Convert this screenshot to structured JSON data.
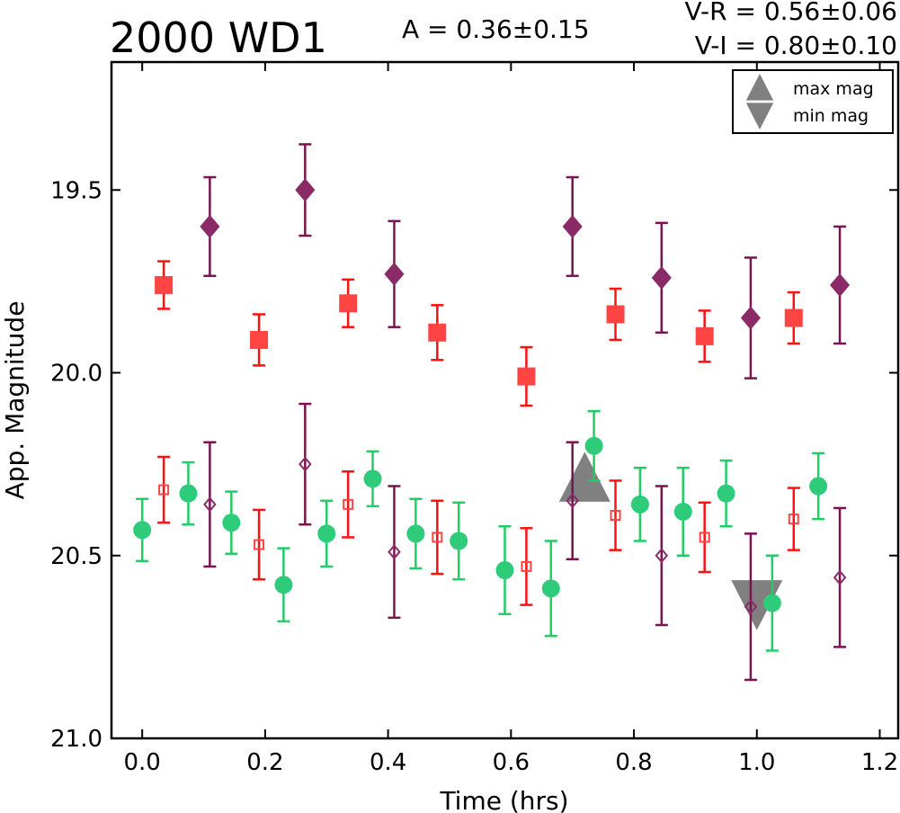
{
  "chart_data": {
    "type": "scatter",
    "title": "2000 WD1",
    "annotations": {
      "amplitude": "A  = 0.36±0.15",
      "v_r": "V-R = 0.56±0.06",
      "v_i": "V-I  = 0.80±0.10"
    },
    "xlabel": "Time (hrs)",
    "ylabel": "App. Magnitude",
    "xlim": [
      -0.05,
      1.23
    ],
    "ylim": [
      21.0,
      19.15
    ],
    "y_inverted": true,
    "x_ticks": [
      0.0,
      0.2,
      0.4,
      0.6,
      0.8,
      1.0,
      1.2
    ],
    "x_tick_labels": [
      "0.0",
      "0.2",
      "0.4",
      "0.6",
      "0.8",
      "1.0",
      "1.2"
    ],
    "y_ticks": [
      19.5,
      20.0,
      20.5,
      21.0
    ],
    "y_tick_labels": [
      "19.5",
      "20.0",
      "20.5",
      "21.0"
    ],
    "grid": false,
    "legend": {
      "placement": "top-right",
      "entries": [
        {
          "label": "max mag",
          "marker": "triangle-up",
          "color": "#808080"
        },
        {
          "label": "min mag",
          "marker": "triangle-down",
          "color": "#808080"
        }
      ]
    },
    "series": [
      {
        "marker": "square",
        "filled": true,
        "color": "#ff4444",
        "err_color": "#ff1111",
        "points": [
          {
            "x": 0.035,
            "y": 19.76,
            "err": 0.065
          },
          {
            "x": 0.19,
            "y": 19.91,
            "err": 0.07
          },
          {
            "x": 0.335,
            "y": 19.81,
            "err": 0.065
          },
          {
            "x": 0.48,
            "y": 19.89,
            "err": 0.075
          },
          {
            "x": 0.625,
            "y": 20.01,
            "err": 0.08
          },
          {
            "x": 0.77,
            "y": 19.84,
            "err": 0.07
          },
          {
            "x": 0.915,
            "y": 19.9,
            "err": 0.07
          },
          {
            "x": 1.06,
            "y": 19.85,
            "err": 0.07
          }
        ]
      },
      {
        "marker": "diamond",
        "filled": true,
        "color": "#8a2a66",
        "err_color": "#7a1450",
        "points": [
          {
            "x": 0.11,
            "y": 19.6,
            "err": 0.135
          },
          {
            "x": 0.265,
            "y": 19.5,
            "err": 0.125
          },
          {
            "x": 0.41,
            "y": 19.73,
            "err": 0.145
          },
          {
            "x": 0.7,
            "y": 19.6,
            "err": 0.135
          },
          {
            "x": 0.845,
            "y": 19.74,
            "err": 0.15
          },
          {
            "x": 0.99,
            "y": 19.85,
            "err": 0.165
          },
          {
            "x": 1.135,
            "y": 19.76,
            "err": 0.16
          }
        ]
      },
      {
        "marker": "square",
        "filled": false,
        "color": "#ff4444",
        "err_color": "#ff1111",
        "points": [
          {
            "x": 0.035,
            "y": 20.32,
            "err": 0.09
          },
          {
            "x": 0.19,
            "y": 20.47,
            "err": 0.095
          },
          {
            "x": 0.335,
            "y": 20.36,
            "err": 0.09
          },
          {
            "x": 0.48,
            "y": 20.45,
            "err": 0.1
          },
          {
            "x": 0.625,
            "y": 20.53,
            "err": 0.105
          },
          {
            "x": 0.77,
            "y": 20.39,
            "err": 0.095
          },
          {
            "x": 0.915,
            "y": 20.45,
            "err": 0.095
          },
          {
            "x": 1.06,
            "y": 20.4,
            "err": 0.085
          }
        ]
      },
      {
        "marker": "diamond",
        "filled": false,
        "color": "#8a2a66",
        "err_color": "#7a1450",
        "points": [
          {
            "x": 0.11,
            "y": 20.36,
            "err": 0.17
          },
          {
            "x": 0.265,
            "y": 20.25,
            "err": 0.165
          },
          {
            "x": 0.41,
            "y": 20.49,
            "err": 0.18
          },
          {
            "x": 0.7,
            "y": 20.35,
            "err": 0.16
          },
          {
            "x": 0.845,
            "y": 20.5,
            "err": 0.19
          },
          {
            "x": 0.99,
            "y": 20.64,
            "err": 0.2
          },
          {
            "x": 1.135,
            "y": 20.56,
            "err": 0.19
          }
        ]
      },
      {
        "marker": "circle",
        "filled": true,
        "color": "#2ecc7a",
        "err_color": "#22cc66",
        "points": [
          {
            "x": 0.0,
            "y": 20.43,
            "err": 0.085
          },
          {
            "x": 0.075,
            "y": 20.33,
            "err": 0.085
          },
          {
            "x": 0.145,
            "y": 20.41,
            "err": 0.085
          },
          {
            "x": 0.23,
            "y": 20.58,
            "err": 0.1
          },
          {
            "x": 0.3,
            "y": 20.44,
            "err": 0.09
          },
          {
            "x": 0.375,
            "y": 20.29,
            "err": 0.075
          },
          {
            "x": 0.445,
            "y": 20.44,
            "err": 0.095
          },
          {
            "x": 0.515,
            "y": 20.46,
            "err": 0.105
          },
          {
            "x": 0.59,
            "y": 20.54,
            "err": 0.12
          },
          {
            "x": 0.665,
            "y": 20.59,
            "err": 0.13
          },
          {
            "x": 0.735,
            "y": 20.2,
            "err": 0.095
          },
          {
            "x": 0.81,
            "y": 20.36,
            "err": 0.1
          },
          {
            "x": 0.88,
            "y": 20.38,
            "err": 0.12
          },
          {
            "x": 0.95,
            "y": 20.33,
            "err": 0.09
          },
          {
            "x": 1.025,
            "y": 20.63,
            "err": 0.13
          },
          {
            "x": 1.1,
            "y": 20.31,
            "err": 0.09
          }
        ]
      }
    ],
    "extrema_markers": [
      {
        "type": "max",
        "marker": "triangle-up",
        "x": 0.72,
        "y": 20.29,
        "color": "#808080"
      },
      {
        "type": "min",
        "marker": "triangle-down",
        "x": 1.0,
        "y": 20.63,
        "color": "#808080"
      }
    ]
  }
}
